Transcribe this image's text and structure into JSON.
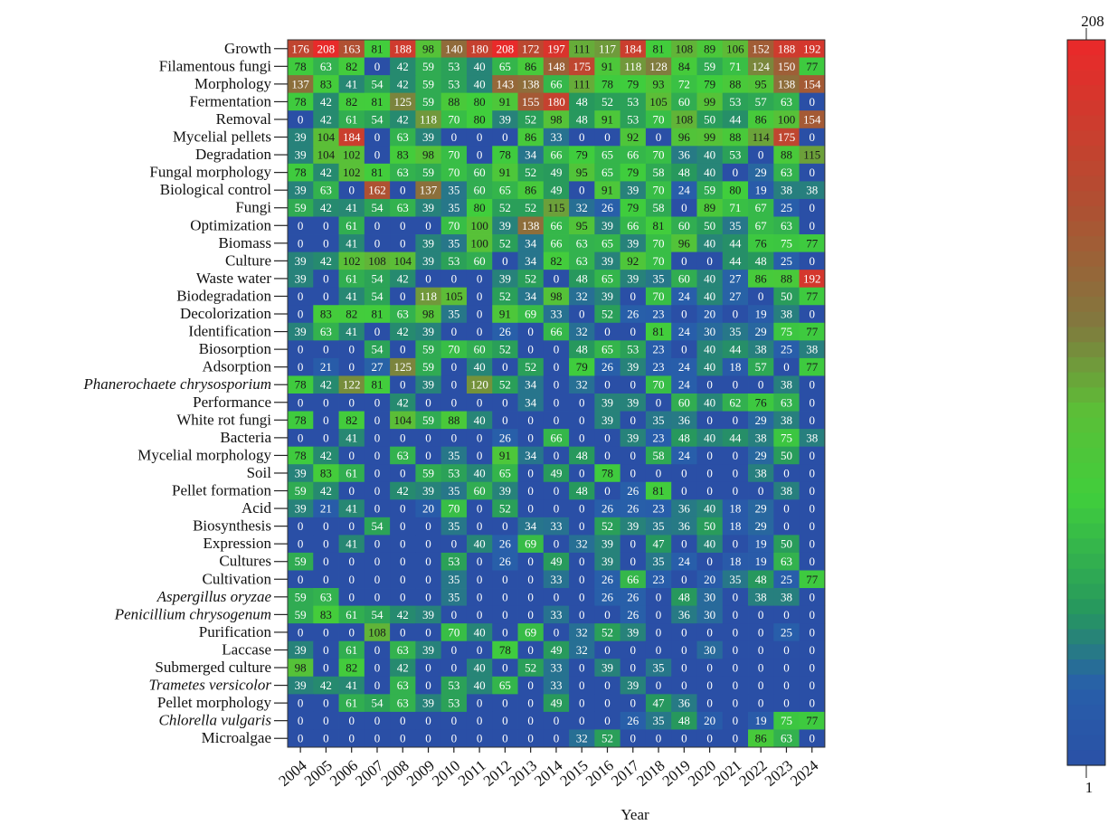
{
  "chart_data": {
    "type": "heatmap",
    "xlabel": "Year",
    "ylabel": "",
    "years": [
      "2004",
      "2005",
      "2006",
      "2007",
      "2008",
      "2009",
      "2010",
      "2011",
      "2012",
      "2013",
      "2014",
      "2015",
      "2016",
      "2017",
      "2018",
      "2019",
      "2020",
      "2021",
      "2022",
      "2023",
      "2024"
    ],
    "rows": [
      {
        "label": "Growth",
        "italic": false,
        "values": [
          176,
          208,
          163,
          81,
          188,
          98,
          140,
          180,
          208,
          172,
          197,
          111,
          117,
          184,
          81,
          108,
          89,
          106,
          152,
          188,
          192
        ]
      },
      {
        "label": "Filamentous fungi",
        "italic": false,
        "values": [
          78,
          63,
          82,
          0,
          42,
          59,
          53,
          40,
          65,
          86,
          148,
          175,
          91,
          118,
          128,
          84,
          59,
          71,
          124,
          150,
          77
        ]
      },
      {
        "label": "Morphology",
        "italic": false,
        "values": [
          137,
          83,
          41,
          54,
          42,
          59,
          53,
          40,
          143,
          138,
          66,
          111,
          78,
          79,
          93,
          72,
          79,
          88,
          95,
          138,
          154
        ]
      },
      {
        "label": "Fermentation",
        "italic": false,
        "values": [
          78,
          42,
          82,
          81,
          125,
          59,
          88,
          80,
          91,
          155,
          180,
          48,
          52,
          53,
          105,
          60,
          99,
          53,
          57,
          63,
          0
        ]
      },
      {
        "label": "Removal",
        "italic": false,
        "values": [
          0,
          42,
          61,
          54,
          42,
          118,
          70,
          80,
          39,
          52,
          98,
          48,
          91,
          53,
          70,
          108,
          50,
          44,
          86,
          100,
          154
        ]
      },
      {
        "label": "Mycelial pellets",
        "italic": false,
        "values": [
          39,
          104,
          184,
          0,
          63,
          39,
          0,
          0,
          0,
          86,
          33,
          0,
          0,
          92,
          0,
          96,
          99,
          88,
          114,
          175,
          0
        ]
      },
      {
        "label": "Degradation",
        "italic": false,
        "values": [
          39,
          104,
          102,
          0,
          83,
          98,
          70,
          0,
          78,
          34,
          66,
          79,
          65,
          66,
          70,
          36,
          40,
          53,
          0,
          88,
          115
        ]
      },
      {
        "label": "Fungal morphology",
        "italic": false,
        "values": [
          78,
          42,
          102,
          81,
          63,
          59,
          70,
          60,
          91,
          52,
          49,
          95,
          65,
          79,
          58,
          48,
          40,
          0,
          29,
          63,
          0
        ]
      },
      {
        "label": "Biological control",
        "italic": false,
        "values": [
          39,
          63,
          0,
          162,
          0,
          137,
          35,
          60,
          65,
          86,
          49,
          0,
          91,
          39,
          70,
          24,
          59,
          80,
          19,
          38,
          38
        ]
      },
      {
        "label": "Fungi",
        "italic": false,
        "values": [
          59,
          42,
          41,
          54,
          63,
          39,
          35,
          80,
          52,
          52,
          115,
          32,
          26,
          79,
          58,
          0,
          89,
          71,
          67,
          25,
          0
        ]
      },
      {
        "label": "Optimization",
        "italic": false,
        "values": [
          0,
          0,
          61,
          0,
          0,
          0,
          70,
          100,
          39,
          138,
          66,
          95,
          39,
          66,
          81,
          60,
          50,
          35,
          67,
          63,
          0
        ]
      },
      {
        "label": "Biomass",
        "italic": false,
        "values": [
          0,
          0,
          41,
          0,
          0,
          39,
          35,
          100,
          52,
          34,
          66,
          63,
          65,
          39,
          70,
          96,
          40,
          44,
          76,
          75,
          77
        ]
      },
      {
        "label": "Culture",
        "italic": false,
        "values": [
          39,
          42,
          102,
          108,
          104,
          39,
          53,
          60,
          0,
          34,
          82,
          63,
          39,
          92,
          70,
          0,
          0,
          44,
          48,
          25,
          0
        ]
      },
      {
        "label": "Waste water",
        "italic": false,
        "values": [
          39,
          0,
          61,
          54,
          42,
          0,
          0,
          0,
          39,
          52,
          0,
          48,
          65,
          39,
          35,
          60,
          40,
          27,
          86,
          88,
          192
        ]
      },
      {
        "label": "Biodegradation",
        "italic": false,
        "values": [
          0,
          0,
          41,
          54,
          0,
          118,
          105,
          0,
          52,
          34,
          98,
          32,
          39,
          0,
          70,
          24,
          40,
          27,
          0,
          50,
          77
        ]
      },
      {
        "label": "Decolorization",
        "italic": false,
        "values": [
          0,
          83,
          82,
          81,
          63,
          98,
          35,
          0,
          91,
          69,
          33,
          0,
          52,
          26,
          23,
          0,
          20,
          0,
          19,
          38,
          0
        ]
      },
      {
        "label": "Identification",
        "italic": false,
        "values": [
          39,
          63,
          41,
          0,
          42,
          39,
          0,
          0,
          26,
          0,
          66,
          32,
          0,
          0,
          81,
          24,
          30,
          35,
          29,
          75,
          77
        ]
      },
      {
        "label": "Biosorption",
        "italic": false,
        "values": [
          0,
          0,
          0,
          54,
          0,
          59,
          70,
          60,
          52,
          0,
          0,
          48,
          65,
          53,
          23,
          0,
          40,
          44,
          38,
          25,
          38
        ]
      },
      {
        "label": "Adsorption",
        "italic": false,
        "values": [
          0,
          21,
          0,
          27,
          125,
          59,
          0,
          40,
          0,
          52,
          0,
          79,
          26,
          39,
          23,
          24,
          40,
          18,
          57,
          0,
          77
        ]
      },
      {
        "label": "Phanerochaete chrysosporium",
        "italic": true,
        "values": [
          78,
          42,
          122,
          81,
          0,
          39,
          0,
          120,
          52,
          34,
          0,
          32,
          0,
          0,
          70,
          24,
          0,
          0,
          0,
          38,
          0
        ]
      },
      {
        "label": "Performance",
        "italic": false,
        "values": [
          0,
          0,
          0,
          0,
          42,
          0,
          0,
          0,
          0,
          34,
          0,
          0,
          39,
          39,
          0,
          60,
          40,
          62,
          76,
          63,
          0
        ]
      },
      {
        "label": "White rot fungi",
        "italic": false,
        "values": [
          78,
          0,
          82,
          0,
          104,
          59,
          88,
          40,
          0,
          0,
          0,
          0,
          39,
          0,
          35,
          36,
          0,
          0,
          29,
          38,
          0
        ]
      },
      {
        "label": "Bacteria",
        "italic": false,
        "values": [
          0,
          0,
          41,
          0,
          0,
          0,
          0,
          0,
          26,
          0,
          66,
          0,
          0,
          39,
          23,
          48,
          40,
          44,
          38,
          75,
          38
        ]
      },
      {
        "label": "Mycelial morphology",
        "italic": false,
        "values": [
          78,
          42,
          0,
          0,
          63,
          0,
          35,
          0,
          91,
          34,
          0,
          48,
          0,
          0,
          58,
          24,
          0,
          0,
          29,
          50,
          0
        ]
      },
      {
        "label": "Soil",
        "italic": false,
        "values": [
          39,
          83,
          61,
          0,
          0,
          59,
          53,
          40,
          65,
          0,
          49,
          0,
          78,
          0,
          0,
          0,
          0,
          0,
          38,
          0,
          0
        ]
      },
      {
        "label": "Pellet formation",
        "italic": false,
        "values": [
          59,
          42,
          0,
          0,
          42,
          39,
          35,
          60,
          39,
          0,
          0,
          48,
          0,
          26,
          81,
          0,
          0,
          0,
          0,
          38,
          0
        ]
      },
      {
        "label": "Acid",
        "italic": false,
        "values": [
          39,
          21,
          41,
          0,
          0,
          20,
          70,
          0,
          52,
          0,
          0,
          0,
          26,
          26,
          23,
          36,
          40,
          18,
          29,
          0,
          0
        ]
      },
      {
        "label": "Biosynthesis",
        "italic": false,
        "values": [
          0,
          0,
          0,
          54,
          0,
          0,
          35,
          0,
          0,
          34,
          33,
          0,
          52,
          39,
          35,
          36,
          50,
          18,
          29,
          0,
          0
        ]
      },
      {
        "label": "Expression",
        "italic": false,
        "values": [
          0,
          0,
          41,
          0,
          0,
          0,
          0,
          40,
          26,
          69,
          0,
          32,
          39,
          0,
          47,
          0,
          40,
          0,
          19,
          50,
          0
        ]
      },
      {
        "label": "Cultures",
        "italic": false,
        "values": [
          59,
          0,
          0,
          0,
          0,
          0,
          53,
          0,
          26,
          0,
          49,
          0,
          39,
          0,
          35,
          24,
          0,
          18,
          19,
          63,
          0
        ]
      },
      {
        "label": "Cultivation",
        "italic": false,
        "values": [
          0,
          0,
          0,
          0,
          0,
          0,
          35,
          0,
          0,
          0,
          33,
          0,
          26,
          66,
          23,
          0,
          20,
          35,
          48,
          25,
          77
        ]
      },
      {
        "label": "Aspergillus oryzae",
        "italic": true,
        "values": [
          59,
          63,
          0,
          0,
          0,
          0,
          35,
          0,
          0,
          0,
          0,
          0,
          26,
          26,
          0,
          48,
          30,
          0,
          38,
          38,
          0
        ]
      },
      {
        "label": "Penicillium chrysogenum",
        "italic": true,
        "values": [
          59,
          83,
          61,
          54,
          42,
          39,
          0,
          0,
          0,
          0,
          33,
          0,
          0,
          26,
          0,
          36,
          30,
          0,
          0,
          0,
          0
        ]
      },
      {
        "label": "Purification",
        "italic": false,
        "values": [
          0,
          0,
          0,
          108,
          0,
          0,
          70,
          40,
          0,
          69,
          0,
          32,
          52,
          39,
          0,
          0,
          0,
          0,
          0,
          25,
          0
        ]
      },
      {
        "label": "Laccase",
        "italic": false,
        "values": [
          39,
          0,
          61,
          0,
          63,
          39,
          0,
          0,
          78,
          0,
          49,
          32,
          0,
          0,
          0,
          0,
          30,
          0,
          0,
          0,
          0
        ]
      },
      {
        "label": "Submerged culture",
        "italic": false,
        "values": [
          98,
          0,
          82,
          0,
          42,
          0,
          0,
          40,
          0,
          52,
          33,
          0,
          39,
          0,
          35,
          0,
          0,
          0,
          0,
          0,
          0
        ]
      },
      {
        "label": "Trametes versicolor",
        "italic": true,
        "values": [
          39,
          42,
          41,
          0,
          63,
          0,
          53,
          40,
          65,
          0,
          33,
          0,
          0,
          39,
          0,
          0,
          0,
          0,
          0,
          0,
          0
        ]
      },
      {
        "label": "Pellet morphology",
        "italic": false,
        "values": [
          0,
          0,
          61,
          54,
          63,
          39,
          53,
          0,
          0,
          0,
          49,
          0,
          0,
          0,
          47,
          36,
          0,
          0,
          0,
          0,
          0
        ]
      },
      {
        "label": "Chlorella vulgaris",
        "italic": true,
        "values": [
          0,
          0,
          0,
          0,
          0,
          0,
          0,
          0,
          0,
          0,
          0,
          0,
          0,
          26,
          35,
          48,
          20,
          0,
          19,
          75,
          77
        ]
      },
      {
        "label": "Microalgae",
        "italic": false,
        "values": [
          0,
          0,
          0,
          0,
          0,
          0,
          0,
          0,
          0,
          0,
          0,
          32,
          52,
          0,
          0,
          0,
          0,
          0,
          86,
          63,
          0
        ]
      }
    ],
    "colorbar": {
      "min": 1,
      "max": 208,
      "min_label": "1",
      "max_label": "208"
    },
    "colors": {
      "low": "#2a4fa6",
      "mid": "#3fcf3c",
      "mid2": "#8a6a3c",
      "high": "#e52b2b"
    },
    "grid": false,
    "legend": "colorbar-right"
  }
}
